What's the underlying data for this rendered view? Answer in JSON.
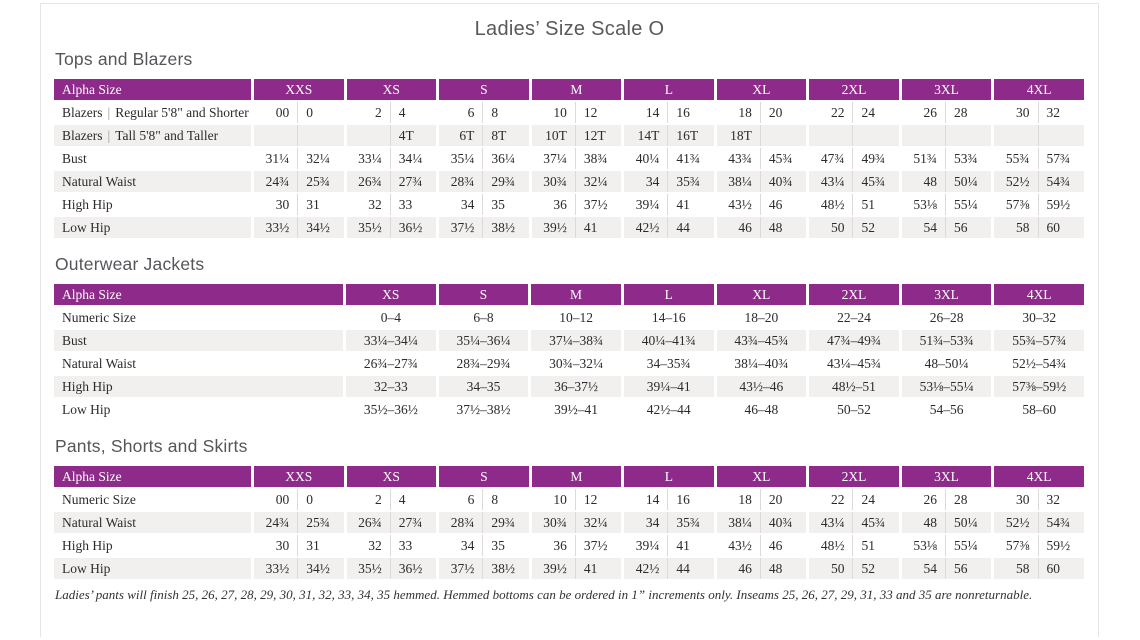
{
  "page": {
    "title": "Ladies’ Size Scale O"
  },
  "colors": {
    "accent_purple": "#8e2b8a",
    "row_stripe": "#f2f0ef",
    "page_border": "#e9e3e6",
    "heading_gray": "#58595b"
  },
  "footnote": "Ladies’ pants will finish 25, 26, 27, 28, 29, 30, 31, 32, 33, 34, 35 hemmed. Hemmed bottoms can be ordered in 1” increments only. Inseams 25, 26, 27, 29, 31, 33 and 35 are nonreturnable.",
  "tables": [
    {
      "heading": "Tops and Blazers",
      "label_header": "Alpha Size",
      "paired": true,
      "sizes": [
        "XXS",
        "XS",
        "S",
        "M",
        "L",
        "XL",
        "2XL",
        "3XL",
        "4XL"
      ],
      "rows": [
        {
          "label": "Blazers | Regular 5'8\" and Shorter",
          "cells": [
            "00",
            "0",
            "2",
            "4",
            "6",
            "8",
            "10",
            "12",
            "14",
            "16",
            "18",
            "20",
            "22",
            "24",
            "26",
            "28",
            "30",
            "32"
          ]
        },
        {
          "label": "Blazers | Tall 5'8\" and Taller",
          "cells": [
            "",
            "",
            "",
            "4T",
            "6T",
            "8T",
            "10T",
            "12T",
            "14T",
            "16T",
            "18T",
            "",
            "",
            "",
            "",
            "",
            "",
            ""
          ]
        },
        {
          "label": "Bust",
          "cells": [
            "31¼",
            "32¼",
            "33¼",
            "34¼",
            "35¼",
            "36¼",
            "37¼",
            "38¾",
            "40¼",
            "41¾",
            "43¾",
            "45¾",
            "47¾",
            "49¾",
            "51¾",
            "53¾",
            "55¾",
            "57¾"
          ]
        },
        {
          "label": "Natural Waist",
          "cells": [
            "24¾",
            "25¾",
            "26¾",
            "27¾",
            "28¾",
            "29¾",
            "30¾",
            "32¼",
            "34",
            "35¾",
            "38¼",
            "40¾",
            "43¼",
            "45¾",
            "48",
            "50¼",
            "52½",
            "54¾"
          ]
        },
        {
          "label": "High Hip",
          "cells": [
            "30",
            "31",
            "32",
            "33",
            "34",
            "35",
            "36",
            "37½",
            "39¼",
            "41",
            "43½",
            "46",
            "48½",
            "51",
            "53⅛",
            "55¼",
            "57⅜",
            "59½"
          ]
        },
        {
          "label": "Low Hip",
          "cells": [
            "33½",
            "34½",
            "35½",
            "36½",
            "37½",
            "38½",
            "39½",
            "41",
            "42½",
            "44",
            "46",
            "48",
            "50",
            "52",
            "54",
            "56",
            "58",
            "60"
          ]
        }
      ]
    },
    {
      "heading": "Outerwear Jackets",
      "label_header": "Alpha Size",
      "paired": false,
      "sizes": [
        "XS",
        "S",
        "M",
        "L",
        "XL",
        "2XL",
        "3XL",
        "4XL"
      ],
      "rows": [
        {
          "label": "Numeric Size",
          "cells": [
            "0–4",
            "6–8",
            "10–12",
            "14–16",
            "18–20",
            "22–24",
            "26–28",
            "30–32"
          ]
        },
        {
          "label": "Bust",
          "cells": [
            "33¼–34¼",
            "35¼–36¼",
            "37¼–38¾",
            "40¼–41¾",
            "43¾–45¾",
            "47¾–49¾",
            "51¾–53¾",
            "55¾–57¾"
          ]
        },
        {
          "label": "Natural Waist",
          "cells": [
            "26¾–27¾",
            "28¾–29¾",
            "30¾–32¼",
            "34–35¾",
            "38¼–40¾",
            "43¼–45¾",
            "48–50¼",
            "52½–54¾"
          ]
        },
        {
          "label": "High Hip",
          "cells": [
            "32–33",
            "34–35",
            "36–37½",
            "39¼–41",
            "43½–46",
            "48½–51",
            "53⅛–55¼",
            "57⅜–59½"
          ]
        },
        {
          "label": "Low Hip",
          "cells": [
            "35½–36½",
            "37½–38½",
            "39½–41",
            "42½–44",
            "46–48",
            "50–52",
            "54–56",
            "58–60"
          ]
        }
      ]
    },
    {
      "heading": "Pants, Shorts and Skirts",
      "label_header": "Alpha Size",
      "paired": true,
      "sizes": [
        "XXS",
        "XS",
        "S",
        "M",
        "L",
        "XL",
        "2XL",
        "3XL",
        "4XL"
      ],
      "rows": [
        {
          "label": "Numeric Size",
          "cells": [
            "00",
            "0",
            "2",
            "4",
            "6",
            "8",
            "10",
            "12",
            "14",
            "16",
            "18",
            "20",
            "22",
            "24",
            "26",
            "28",
            "30",
            "32"
          ]
        },
        {
          "label": "Natural Waist",
          "cells": [
            "24¾",
            "25¾",
            "26¾",
            "27¾",
            "28¾",
            "29¾",
            "30¾",
            "32¼",
            "34",
            "35¾",
            "38¼",
            "40¾",
            "43¼",
            "45¾",
            "48",
            "50¼",
            "52½",
            "54¾"
          ]
        },
        {
          "label": "High Hip",
          "cells": [
            "30",
            "31",
            "32",
            "33",
            "34",
            "35",
            "36",
            "37½",
            "39¼",
            "41",
            "43½",
            "46",
            "48½",
            "51",
            "53⅛",
            "55¼",
            "57⅜",
            "59½"
          ]
        },
        {
          "label": "Low Hip",
          "cells": [
            "33½",
            "34½",
            "35½",
            "36½",
            "37½",
            "38½",
            "39½",
            "41",
            "42½",
            "44",
            "46",
            "48",
            "50",
            "52",
            "54",
            "56",
            "58",
            "60"
          ]
        }
      ]
    }
  ]
}
